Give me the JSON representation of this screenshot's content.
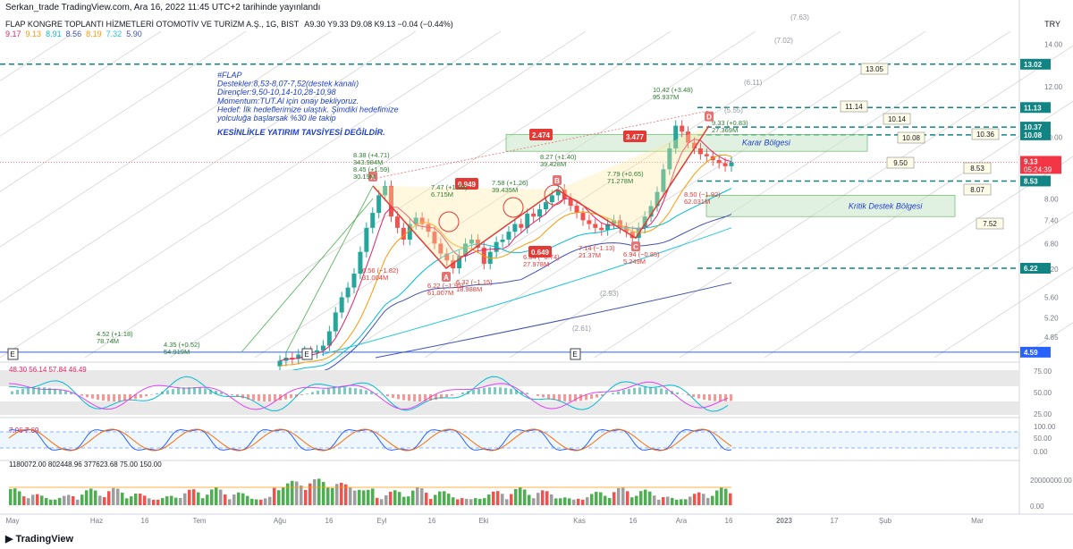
{
  "header": {
    "publisher": "Serkan_trade TradingView.com, Ara 16, 2022 11:45 UTC+2 tarihinde yayınlandı",
    "symbol": "FLAP KONGRE TOPLANTI HİZMETLERİ OTOMOTİV VE TURİZM A.Ş., 1G, BIST",
    "ohlc": "A9.30  Y9.33  D9.08  K9.13  −0.04 (−0.44%)",
    "currency": "TRY"
  },
  "ma_values": [
    {
      "label": "9.17",
      "color": "#e91e63"
    },
    {
      "label": "9.13",
      "color": "#ff9800"
    },
    {
      "label": "8.91",
      "color": "#00bcd4"
    },
    {
      "label": "8.56",
      "color": "#3f51b5"
    },
    {
      "label": "8.19",
      "color": "#ff9800"
    },
    {
      "label": "7.32",
      "color": "#26c6da"
    },
    {
      "label": "5.90",
      "color": "#3f51b5"
    }
  ],
  "note": {
    "lines": [
      "#FLAP",
      "Destekler:8,53-8,07-7,52(destek kanalı)",
      "Dirençler:9,50-10,14-10,28-10,98",
      "Momentum:TUT.Al için onay bekliyoruz.",
      "Hedef: İlk hedeflerimize ulaştık. Şimdiki hedefimize",
      "yolculuğa başlarsak %30 ile takip"
    ],
    "warning": "KESİNLİKLE YATIRIM TAVSİYESİ DEĞİLDİR.",
    "color": "#1e3fc9"
  },
  "chart_data": {
    "type": "candlestick",
    "x_ticks": [
      "May",
      "Haz",
      "16",
      "Tem",
      "Ağu",
      "16",
      "Eyl",
      "16",
      "Eki",
      "Kas",
      "16",
      "Ara",
      "16",
      "2023",
      "17",
      "Şub",
      "Mar"
    ],
    "y_ticks": [
      14.0,
      12.0,
      10.0,
      8.0,
      7.4,
      6.8,
      6.2,
      5.6,
      5.2,
      4.85
    ],
    "ylim": [
      4.5,
      14.2
    ],
    "log_scale": true,
    "last_price": {
      "value": 9.13,
      "label": "9.13",
      "time": "05:24:39",
      "color": "#f23645"
    },
    "price_axis_tags": [
      "13.02",
      "11.13",
      "10.37",
      "10.08",
      "8.53",
      "6.22",
      "4.59"
    ],
    "horizontal_levels": [
      13.02,
      11.13,
      10.37,
      10.08,
      8.53,
      6.22
    ],
    "zones": [
      {
        "label": "Karar Bölgesi",
        "low": 9.5,
        "high": 10.1
      },
      {
        "label": "Kritik Destek Bölgesi",
        "low": 7.5,
        "high": 8.1
      }
    ],
    "target_boxes": [
      "13.05",
      "11.14",
      "10.14",
      "10.08",
      "10.36",
      "9.50",
      "8.53",
      "8.07",
      "7.52"
    ],
    "fib_labels": [
      "(7.63)",
      "(7.02)",
      "(6.11)",
      "(5.55)",
      "(2.93)",
      "(2.61)"
    ],
    "pattern": {
      "points": [
        {
          "label": "X",
          "value": 8.38
        },
        {
          "label": "A",
          "value": 6.22
        },
        {
          "label": "B",
          "value": 8.27
        },
        {
          "label": "C",
          "value": 6.94
        },
        {
          "label": "D",
          "value": 10.42
        }
      ],
      "ratios": [
        "0.949",
        "0.649",
        "2.474",
        "3.477"
      ]
    },
    "annotations": [
      {
        "lines": [
          "8.38 (+4.71)",
          "343.984M",
          "8.45 (+1.59)",
          "30.19M"
        ]
      },
      {
        "lines": [
          "7.47 (+1.59)",
          "6.715M"
        ]
      },
      {
        "lines": [
          "7.58 (+1.26)",
          "39.435M"
        ]
      },
      {
        "lines": [
          "8.27 (+1.40)",
          "39.428M"
        ]
      },
      {
        "lines": [
          "7.79 (+0.65)",
          "71.278M"
        ]
      },
      {
        "lines": [
          "10.42 (+3.48)",
          "95.937M"
        ]
      },
      {
        "lines": [
          "9.33 (+0.83)",
          "27.369M"
        ]
      },
      {
        "lines": [
          "8.50 (−1.92)",
          "62.031M"
        ]
      },
      {
        "lines": [
          "6.56 (−1.82)",
          "31.004M"
        ]
      },
      {
        "lines": [
          "6.22 (−1.95)",
          "61.007M"
        ]
      },
      {
        "lines": [
          "6.32 (−1.15)",
          "18.988M"
        ]
      },
      {
        "lines": [
          "6.84 (−0.74)",
          "27.978M"
        ]
      },
      {
        "lines": [
          "7.14 (−1.13)",
          "21.37M"
        ]
      },
      {
        "lines": [
          "6.94 (−0.85)",
          "5.249M"
        ]
      },
      {
        "lines": [
          "4.52 (+1.18)",
          "78.74M"
        ]
      },
      {
        "lines": [
          "4.35 (+0.52)",
          "54.919M"
        ]
      }
    ],
    "candles_close": [
      4.45,
      4.5,
      4.48,
      4.55,
      4.6,
      4.58,
      4.62,
      4.7,
      4.95,
      5.3,
      5.6,
      5.8,
      6.1,
      6.6,
      7.2,
      7.6,
      8.1,
      8.38,
      7.5,
      7.2,
      6.9,
      7.3,
      7.47,
      7.3,
      7.1,
      6.8,
      6.56,
      6.4,
      6.22,
      6.5,
      6.8,
      6.9,
      6.7,
      6.32,
      6.6,
      6.84,
      6.9,
      7.1,
      7.3,
      7.2,
      7.58,
      7.5,
      7.7,
      7.9,
      8.1,
      8.27,
      8.0,
      7.8,
      7.6,
      7.4,
      7.3,
      7.2,
      7.14,
      7.3,
      7.4,
      7.2,
      7.1,
      6.94,
      7.2,
      7.5,
      7.79,
      8.2,
      8.9,
      9.6,
      10.42,
      10.2,
      9.8,
      9.6,
      9.4,
      9.33,
      9.2,
      9.1,
      9.0,
      9.13
    ],
    "indicators": {
      "rsi": {
        "label": "48.30  56.14  57.84  46.49",
        "ticks": [
          "75.00",
          "50.00",
          "25.00"
        ]
      },
      "stoch": {
        "label": "7.06  7.69",
        "ticks": [
          "100.00",
          "50.00",
          "0.00"
        ]
      },
      "volume": {
        "label": "1180072.00  802448.96  377623.68  75.00  150.00",
        "ticks": [
          "20000000.00",
          "0.00"
        ]
      }
    }
  },
  "footer": {
    "brand": "TradingView"
  }
}
